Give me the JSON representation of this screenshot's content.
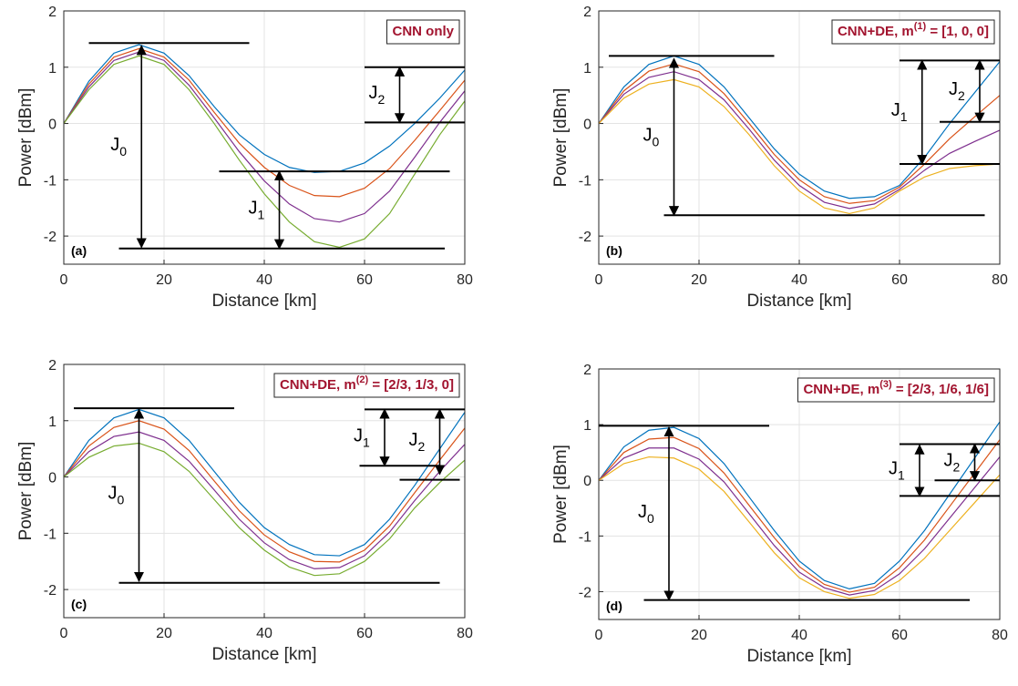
{
  "chart_data": [
    {
      "type": "line",
      "panel_label": "(a)",
      "xlabel": "Distance [km]",
      "ylabel": "Power [dBm]",
      "xlim": [
        0,
        80
      ],
      "ylim": [
        -2.5,
        2
      ],
      "xticks": [
        0,
        20,
        40,
        60,
        80
      ],
      "yticks": [
        -2,
        -1,
        0,
        1,
        2
      ],
      "grid": true,
      "box_text": {
        "main": "CNN only"
      },
      "x": [
        0,
        5,
        10,
        15,
        20,
        25,
        30,
        35,
        40,
        45,
        50,
        55,
        60,
        65,
        70,
        75,
        80
      ],
      "series": [
        {
          "color": "#0072BD",
          "values": [
            0,
            0.75,
            1.25,
            1.4,
            1.25,
            0.85,
            0.3,
            -0.2,
            -0.55,
            -0.78,
            -0.87,
            -0.85,
            -0.7,
            -0.4,
            0,
            0.45,
            0.95
          ]
        },
        {
          "color": "#D95319",
          "values": [
            0,
            0.7,
            1.18,
            1.33,
            1.18,
            0.77,
            0.2,
            -0.35,
            -0.78,
            -1.1,
            -1.28,
            -1.3,
            -1.15,
            -0.8,
            -0.3,
            0.23,
            0.77
          ]
        },
        {
          "color": "#7E2F8E",
          "values": [
            0,
            0.65,
            1.12,
            1.27,
            1.12,
            0.68,
            0.1,
            -0.5,
            -1.02,
            -1.43,
            -1.69,
            -1.75,
            -1.6,
            -1.2,
            -0.6,
            0.02,
            0.58
          ]
        },
        {
          "color": "#77AC30",
          "values": [
            0,
            0.6,
            1.05,
            1.2,
            1.05,
            0.6,
            0,
            -0.65,
            -1.25,
            -1.75,
            -2.1,
            -2.2,
            -2.05,
            -1.6,
            -0.9,
            -0.2,
            0.4
          ]
        }
      ],
      "hlines": [
        {
          "x": [
            5,
            37
          ],
          "y": 1.43
        },
        {
          "x": [
            11,
            76
          ],
          "y": -2.22
        },
        {
          "x": [
            31,
            77
          ],
          "y": -0.85
        },
        {
          "x": [
            60,
            80
          ],
          "y": 1.0
        },
        {
          "x": [
            60,
            80
          ],
          "y": 0.02
        }
      ],
      "arrows": [
        {
          "x": 15.5,
          "y": [
            1.38,
            -2.2
          ],
          "label": "J",
          "sub": "0"
        },
        {
          "x": 43,
          "y": [
            -0.85,
            -2.22
          ],
          "label": "J",
          "sub": "1"
        },
        {
          "x": 67,
          "y": [
            1.0,
            0.02
          ],
          "label": "J",
          "sub": "2"
        }
      ]
    },
    {
      "type": "line",
      "panel_label": "(b)",
      "xlabel": "Distance [km]",
      "ylabel": "Power [dBm]",
      "xlim": [
        0,
        80
      ],
      "ylim": [
        -2.5,
        2
      ],
      "xticks": [
        0,
        20,
        40,
        60,
        80
      ],
      "yticks": [
        -2,
        -1,
        0,
        1,
        2
      ],
      "grid": true,
      "box_text": {
        "main": "CNN+DE, m",
        "sup": "(1)",
        "rest": " = [1, 0, 0]"
      },
      "x": [
        0,
        5,
        10,
        15,
        20,
        25,
        30,
        35,
        40,
        45,
        50,
        55,
        60,
        65,
        70,
        75,
        80
      ],
      "series": [
        {
          "color": "#0072BD",
          "values": [
            0,
            0.65,
            1.05,
            1.2,
            1.05,
            0.65,
            0.1,
            -0.45,
            -0.9,
            -1.2,
            -1.33,
            -1.3,
            -1.1,
            -0.6,
            0,
            0.55,
            1.1
          ]
        },
        {
          "color": "#D95319",
          "values": [
            0,
            0.58,
            0.93,
            1.06,
            0.92,
            0.53,
            0,
            -0.55,
            -1.0,
            -1.3,
            -1.42,
            -1.37,
            -1.13,
            -0.72,
            -0.27,
            0.12,
            0.5
          ]
        },
        {
          "color": "#7E2F8E",
          "values": [
            0,
            0.52,
            0.82,
            0.92,
            0.78,
            0.42,
            -0.1,
            -0.65,
            -1.1,
            -1.4,
            -1.51,
            -1.43,
            -1.17,
            -0.83,
            -0.53,
            -0.32,
            -0.12
          ]
        },
        {
          "color": "#EDB120",
          "values": [
            0,
            0.45,
            0.7,
            0.78,
            0.65,
            0.3,
            -0.2,
            -0.75,
            -1.2,
            -1.5,
            -1.6,
            -1.5,
            -1.2,
            -0.95,
            -0.8,
            -0.75,
            -0.72
          ]
        }
      ],
      "hlines": [
        {
          "x": [
            2,
            35
          ],
          "y": 1.2
        },
        {
          "x": [
            13,
            77
          ],
          "y": -1.63
        },
        {
          "x": [
            60,
            80
          ],
          "y": 1.12
        },
        {
          "x": [
            60,
            80
          ],
          "y": -0.72
        },
        {
          "x": [
            68,
            80
          ],
          "y": 0.03
        }
      ],
      "arrows": [
        {
          "x": 15,
          "y": [
            1.15,
            -1.63
          ],
          "label": "J",
          "sub": "0"
        },
        {
          "x": 64.5,
          "y": [
            1.12,
            -0.72
          ],
          "label": "J",
          "sub": "1"
        },
        {
          "x": 76,
          "y": [
            1.12,
            0.03
          ],
          "label": "J",
          "sub": "2"
        }
      ]
    },
    {
      "type": "line",
      "panel_label": "(c)",
      "xlabel": "Distance [km]",
      "ylabel": "Power [dBm]",
      "xlim": [
        0,
        80
      ],
      "ylim": [
        -2.5,
        2
      ],
      "xticks": [
        0,
        20,
        40,
        60,
        80
      ],
      "yticks": [
        -2,
        -1,
        0,
        1,
        2
      ],
      "grid": true,
      "box_text": {
        "main": "CNN+DE, m",
        "sup": "(2)",
        "rest": " = [2/3, 1/3, 0]"
      },
      "x": [
        0,
        5,
        10,
        15,
        20,
        25,
        30,
        35,
        40,
        45,
        50,
        55,
        60,
        65,
        70,
        75,
        80
      ],
      "series": [
        {
          "color": "#0072BD",
          "values": [
            0,
            0.65,
            1.05,
            1.2,
            1.05,
            0.65,
            0.1,
            -0.45,
            -0.9,
            -1.2,
            -1.38,
            -1.4,
            -1.2,
            -0.75,
            -0.15,
            0.5,
            1.15
          ]
        },
        {
          "color": "#D95319",
          "values": [
            0,
            0.55,
            0.88,
            1.0,
            0.85,
            0.47,
            -0.07,
            -0.6,
            -1.03,
            -1.33,
            -1.5,
            -1.51,
            -1.3,
            -0.87,
            -0.28,
            0.3,
            0.87
          ]
        },
        {
          "color": "#7E2F8E",
          "values": [
            0,
            0.45,
            0.72,
            0.8,
            0.65,
            0.28,
            -0.23,
            -0.75,
            -1.17,
            -1.47,
            -1.63,
            -1.61,
            -1.4,
            -0.98,
            -0.42,
            0.1,
            0.58
          ]
        },
        {
          "color": "#77AC30",
          "values": [
            0,
            0.35,
            0.55,
            0.6,
            0.45,
            0.1,
            -0.4,
            -0.9,
            -1.3,
            -1.6,
            -1.75,
            -1.72,
            -1.5,
            -1.1,
            -0.55,
            -0.1,
            0.3
          ]
        }
      ],
      "hlines": [
        {
          "x": [
            2,
            34
          ],
          "y": 1.22
        },
        {
          "x": [
            11,
            75
          ],
          "y": -1.88
        },
        {
          "x": [
            60,
            80
          ],
          "y": 1.2
        },
        {
          "x": [
            59,
            75
          ],
          "y": 0.2
        },
        {
          "x": [
            67,
            79
          ],
          "y": -0.05
        }
      ],
      "arrows": [
        {
          "x": 15,
          "y": [
            1.2,
            -1.85
          ],
          "label": "J",
          "sub": "0"
        },
        {
          "x": 64,
          "y": [
            1.2,
            0.2
          ],
          "label": "J",
          "sub": "1"
        },
        {
          "x": 75,
          "y": [
            1.2,
            0.05
          ],
          "label": "J",
          "sub": "2"
        }
      ]
    },
    {
      "type": "line",
      "panel_label": "(d)",
      "xlabel": "Distance [km]",
      "ylabel": "Power [dBm]",
      "xlim": [
        0,
        80
      ],
      "ylim": [
        -2.5,
        2
      ],
      "xticks": [
        0,
        20,
        40,
        60,
        80
      ],
      "yticks": [
        -2,
        -1,
        0,
        1,
        2
      ],
      "grid": true,
      "box_text": {
        "main": "CNN+DE, m",
        "sup": "(3)",
        "rest": " = [2/3, 1/6, 1/6]"
      },
      "x": [
        0,
        5,
        10,
        15,
        20,
        25,
        30,
        35,
        40,
        45,
        50,
        55,
        60,
        65,
        70,
        75,
        80
      ],
      "series": [
        {
          "color": "#0072BD",
          "values": [
            0,
            0.6,
            0.9,
            0.95,
            0.75,
            0.3,
            -0.3,
            -0.9,
            -1.45,
            -1.8,
            -1.95,
            -1.85,
            -1.45,
            -0.9,
            -0.25,
            0.4,
            1.05
          ]
        },
        {
          "color": "#D95319",
          "values": [
            0,
            0.5,
            0.74,
            0.77,
            0.57,
            0.13,
            -0.45,
            -1.03,
            -1.55,
            -1.87,
            -2.01,
            -1.92,
            -1.57,
            -1.07,
            -0.47,
            0.13,
            0.73
          ]
        },
        {
          "color": "#7E2F8E",
          "values": [
            0,
            0.4,
            0.58,
            0.58,
            0.38,
            -0.03,
            -0.6,
            -1.17,
            -1.65,
            -1.93,
            -2.06,
            -1.98,
            -1.68,
            -1.23,
            -0.68,
            -0.13,
            0.42
          ]
        },
        {
          "color": "#EDB120",
          "values": [
            0,
            0.3,
            0.42,
            0.4,
            0.2,
            -0.2,
            -0.75,
            -1.3,
            -1.75,
            -2.0,
            -2.12,
            -2.05,
            -1.8,
            -1.4,
            -0.9,
            -0.4,
            0.1
          ]
        }
      ],
      "hlines": [
        {
          "x": [
            0,
            34
          ],
          "y": 0.98
        },
        {
          "x": [
            9,
            74
          ],
          "y": -2.15
        },
        {
          "x": [
            60,
            80
          ],
          "y": 0.65
        },
        {
          "x": [
            60,
            80
          ],
          "y": -0.28
        },
        {
          "x": [
            67,
            80
          ],
          "y": 0.0
        }
      ],
      "arrows": [
        {
          "x": 14,
          "y": [
            0.95,
            -2.15
          ],
          "label": "J",
          "sub": "0"
        },
        {
          "x": 64,
          "y": [
            0.63,
            -0.28
          ],
          "label": "J",
          "sub": "1"
        },
        {
          "x": 75,
          "y": [
            0.65,
            0.0
          ],
          "label": "J",
          "sub": "2"
        }
      ]
    }
  ]
}
